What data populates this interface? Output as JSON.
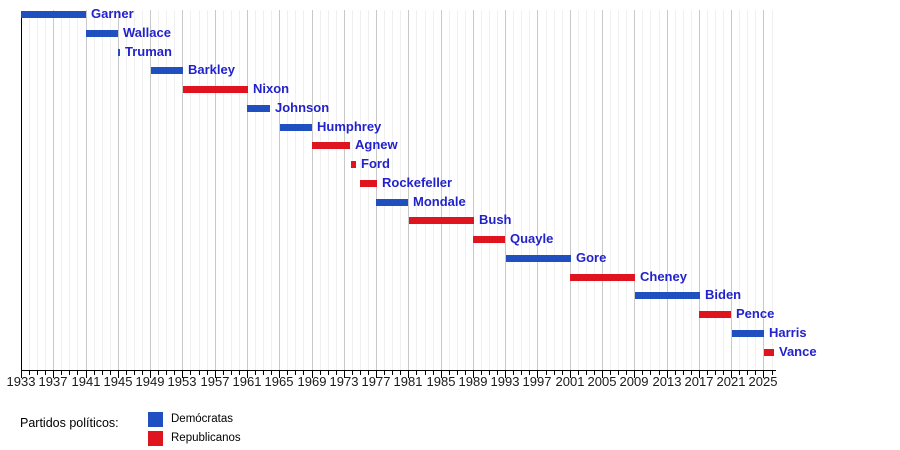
{
  "chart_data": {
    "type": "bar",
    "subtype": "timeline-gantt",
    "title": "",
    "xlabel": "",
    "ylabel": "",
    "x_range": [
      1933,
      2026.6
    ],
    "x_tick_step_major": 4,
    "x_tick_step_minor": 1,
    "grid": "on",
    "x_ticks": [
      "1933",
      "1937",
      "1941",
      "1945",
      "1949",
      "1953",
      "1957",
      "1961",
      "1965",
      "1969",
      "1973",
      "1977",
      "1981",
      "1985",
      "1989",
      "1993",
      "1997",
      "2001",
      "2005",
      "2009",
      "2013",
      "2017",
      "2021",
      "2025"
    ],
    "series": [
      {
        "name": "Garner",
        "party": "Demócratas",
        "start": 1933.0,
        "end": 1941.05
      },
      {
        "name": "Wallace",
        "party": "Demócratas",
        "start": 1941.05,
        "end": 1945.05
      },
      {
        "name": "Truman",
        "party": "Demócratas",
        "start": 1945.05,
        "end": 1945.3
      },
      {
        "name": "Barkley",
        "party": "Demócratas",
        "start": 1949.05,
        "end": 1953.05
      },
      {
        "name": "Nixon",
        "party": "Republicanos",
        "start": 1953.05,
        "end": 1961.05
      },
      {
        "name": "Johnson",
        "party": "Demócratas",
        "start": 1961.05,
        "end": 1963.9
      },
      {
        "name": "Humphrey",
        "party": "Demócratas",
        "start": 1965.05,
        "end": 1969.05
      },
      {
        "name": "Agnew",
        "party": "Republicanos",
        "start": 1969.05,
        "end": 1973.8
      },
      {
        "name": "Ford",
        "party": "Republicanos",
        "start": 1973.95,
        "end": 1974.6
      },
      {
        "name": "Rockefeller",
        "party": "Republicanos",
        "start": 1974.95,
        "end": 1977.05
      },
      {
        "name": "Mondale",
        "party": "Demócratas",
        "start": 1977.05,
        "end": 1981.05
      },
      {
        "name": "Bush",
        "party": "Republicanos",
        "start": 1981.05,
        "end": 1989.05
      },
      {
        "name": "Quayle",
        "party": "Republicanos",
        "start": 1989.05,
        "end": 1993.05
      },
      {
        "name": "Gore",
        "party": "Demócratas",
        "start": 1993.05,
        "end": 2001.05
      },
      {
        "name": "Cheney",
        "party": "Republicanos",
        "start": 2001.05,
        "end": 2009.05
      },
      {
        "name": "Biden",
        "party": "Demócratas",
        "start": 2009.05,
        "end": 2017.05
      },
      {
        "name": "Pence",
        "party": "Republicanos",
        "start": 2017.05,
        "end": 2021.05
      },
      {
        "name": "Harris",
        "party": "Demócratas",
        "start": 2021.05,
        "end": 2025.05
      },
      {
        "name": "Vance",
        "party": "Republicanos",
        "start": 2025.05,
        "end": 2026.3
      }
    ],
    "colors": {
      "Demócratas": "#2050c0",
      "Republicanos": "#e0141e",
      "label_text": "#2222cc",
      "axis": "#000000",
      "tick_label": "#1a1a1a",
      "grid_major": "#c9c9c9",
      "grid_minor": "#f0f0f0",
      "background": "#ffffff"
    },
    "legend": {
      "position": "bottom-left",
      "title": "Partidos políticos:",
      "entries": [
        {
          "label": "Demócratas",
          "color": "#2050c0"
        },
        {
          "label": "Republicanos",
          "color": "#e0141e"
        }
      ]
    }
  }
}
